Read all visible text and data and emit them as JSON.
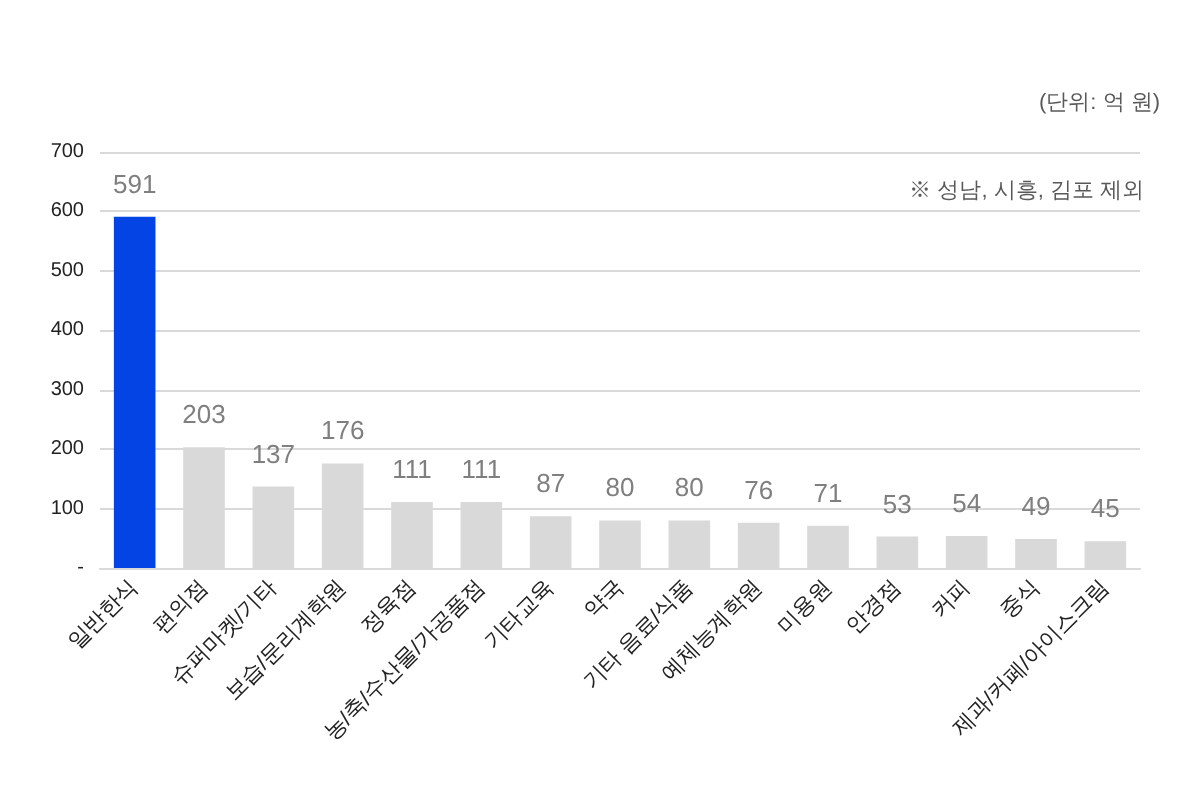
{
  "chart_data": {
    "type": "bar",
    "categories": [
      "일반한식",
      "편의점",
      "슈퍼마켓/기타",
      "보습/문리계학원",
      "정육점",
      "농/축/수산물/가공품점",
      "기타교육",
      "약국",
      "기타 음료/식품",
      "예체능계학원",
      "미용원",
      "안경점",
      "커피",
      "중식",
      "제과/커페/아이스크림"
    ],
    "values": [
      591,
      203,
      137,
      176,
      111,
      111,
      87,
      80,
      80,
      76,
      71,
      53,
      54,
      49,
      45
    ],
    "colors": [
      "#0444e4",
      "#d9d9d9",
      "#d9d9d9",
      "#d9d9d9",
      "#d9d9d9",
      "#d9d9d9",
      "#d9d9d9",
      "#d9d9d9",
      "#d9d9d9",
      "#d9d9d9",
      "#d9d9d9",
      "#d9d9d9",
      "#d9d9d9",
      "#d9d9d9",
      "#d9d9d9"
    ],
    "ylim": [
      0,
      700
    ],
    "yticks": [
      {
        "value": 0,
        "label": "-"
      },
      100,
      200,
      300,
      400,
      500,
      600,
      700
    ],
    "grid": "y",
    "data_labels": true,
    "annotations": [
      "(단위: 억 원)",
      "※ 성남, 시흥, 김포 제외"
    ]
  }
}
